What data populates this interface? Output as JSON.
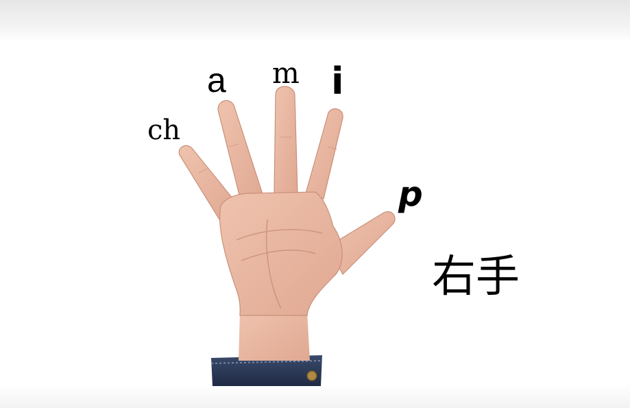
{
  "finger_labels": {
    "little": "ch",
    "ring": "a",
    "middle": "m",
    "index": "i",
    "thumb": "p"
  },
  "caption": "右手",
  "colors": {
    "skin": "#e9b9a4",
    "skin_shadow": "#c98f78",
    "sleeve": "#2b3a58"
  }
}
